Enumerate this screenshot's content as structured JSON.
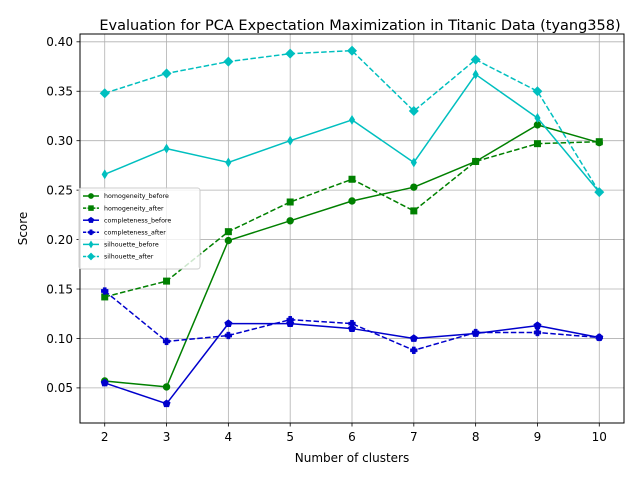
{
  "chart_data": {
    "type": "line",
    "title": "Evaluation for PCA Expectation Maximization in Titanic Data (tyang358)",
    "xlabel": "Number of clusters",
    "ylabel": "Score",
    "x": [
      2,
      3,
      4,
      5,
      6,
      7,
      8,
      9,
      10
    ],
    "xlim": [
      1.6,
      10.4
    ],
    "ylim": [
      0.0145,
      0.4079
    ],
    "yticks": [
      0.05,
      0.1,
      0.15,
      0.2,
      0.25,
      0.3,
      0.35,
      0.4
    ],
    "ytick_labels": [
      "0.05",
      "0.10",
      "0.15",
      "0.20",
      "0.25",
      "0.30",
      "0.35",
      "0.40"
    ],
    "xtick_labels": [
      "2",
      "3",
      "4",
      "5",
      "6",
      "7",
      "8",
      "9",
      "10"
    ],
    "grid": true,
    "legend_position": "center-left",
    "series": [
      {
        "name": "homogeneity_before",
        "color": "#008000",
        "dash": "solid",
        "marker": "circle",
        "values": [
          0.057,
          0.051,
          0.199,
          0.219,
          0.239,
          0.253,
          0.279,
          0.316,
          0.298
        ]
      },
      {
        "name": "homogeneity_after",
        "color": "#008000",
        "dash": "dashed",
        "marker": "square",
        "values": [
          0.142,
          0.158,
          0.208,
          0.238,
          0.261,
          0.229,
          0.279,
          0.297,
          0.299
        ]
      },
      {
        "name": "completeness_before",
        "color": "#0000cc",
        "dash": "solid",
        "marker": "pentagon",
        "values": [
          0.055,
          0.034,
          0.115,
          0.115,
          0.11,
          0.1,
          0.105,
          0.113,
          0.101
        ]
      },
      {
        "name": "completeness_after",
        "color": "#0000cc",
        "dash": "dashed",
        "marker": "plus",
        "values": [
          0.148,
          0.097,
          0.103,
          0.119,
          0.115,
          0.088,
          0.106,
          0.106,
          0.101
        ]
      },
      {
        "name": "silhouette_before",
        "color": "#00bfbf",
        "dash": "solid",
        "marker": "thin_diamond",
        "values": [
          0.266,
          0.292,
          0.278,
          0.3,
          0.321,
          0.278,
          0.367,
          0.323,
          0.248
        ]
      },
      {
        "name": "silhouette_after",
        "color": "#00bfbf",
        "dash": "dashed",
        "marker": "diamond",
        "values": [
          0.348,
          0.368,
          0.38,
          0.388,
          0.391,
          0.33,
          0.382,
          0.35,
          0.248
        ]
      }
    ]
  }
}
